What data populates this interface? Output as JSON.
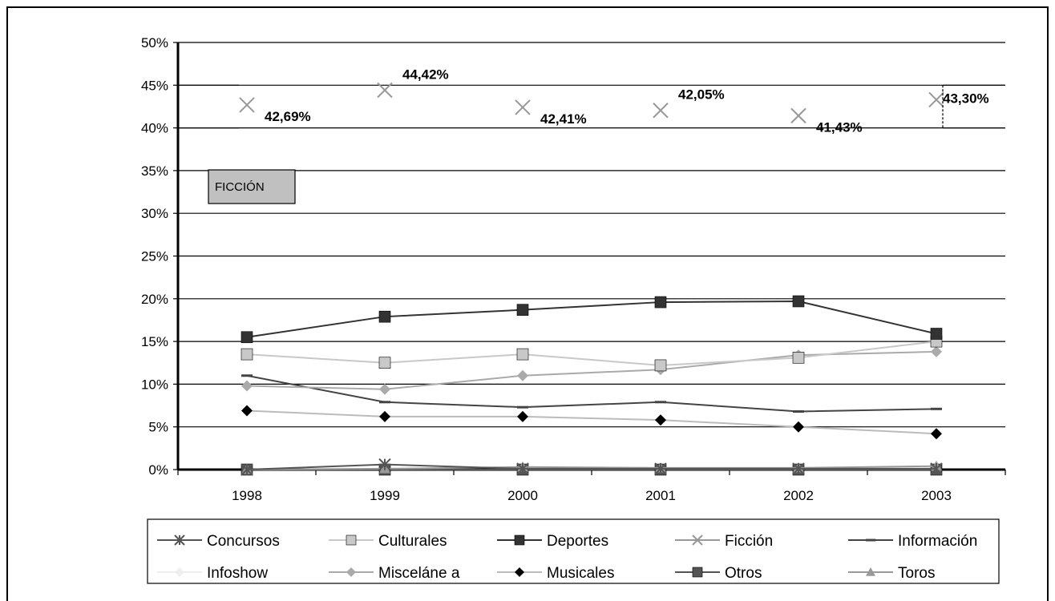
{
  "chart_data": {
    "type": "line",
    "categories": [
      "1998",
      "1999",
      "2000",
      "2001",
      "2002",
      "2003"
    ],
    "ylim": [
      0,
      50
    ],
    "y_tick_labels": [
      "0%",
      "5%",
      "10%",
      "15%",
      "20%",
      "25%",
      "30%",
      "35%",
      "40%",
      "45%",
      "50%"
    ],
    "grid": true,
    "legend_position": "bottom",
    "annotation_box": "FICCIÓN",
    "series": [
      {
        "name": "Concursos",
        "values": [
          0.0,
          0.6,
          0.1,
          0.1,
          0.1,
          0.1
        ],
        "color": "#555555",
        "marker": "star"
      },
      {
        "name": "Culturales",
        "values": [
          13.5,
          12.5,
          13.5,
          12.2,
          13.1,
          15.0
        ],
        "color": "#c8c8c8",
        "marker": "square"
      },
      {
        "name": "Deportes",
        "values": [
          15.5,
          17.9,
          18.7,
          19.6,
          19.7,
          15.9
        ],
        "color": "#333333",
        "marker": "square"
      },
      {
        "name": "Ficción",
        "values": [
          42.69,
          44.42,
          42.41,
          42.05,
          41.43,
          43.3
        ],
        "value_labels": [
          "42,69%",
          "44,42%",
          "42,41%",
          "42,05%",
          "41,43%",
          "43,30%"
        ],
        "color": "#999999",
        "marker": "x"
      },
      {
        "name": "Información",
        "values": [
          11.0,
          7.9,
          7.3,
          7.9,
          6.8,
          7.1
        ],
        "color": "#444444",
        "marker": "dash"
      },
      {
        "name": "Infoshow",
        "values": [
          0.0,
          0.0,
          0.0,
          0.0,
          0.0,
          0.0
        ],
        "color": "#eeeeee",
        "marker": "diamond"
      },
      {
        "name": "Misceláne a",
        "values": [
          9.8,
          9.4,
          11.0,
          11.7,
          13.4,
          13.8
        ],
        "color": "#aaaaaa",
        "marker": "diamond"
      },
      {
        "name": "Musicales",
        "values": [
          6.9,
          6.2,
          6.2,
          5.8,
          5.0,
          4.2
        ],
        "color": "#000000",
        "marker": "diamond",
        "line_color": "#bbbbbb"
      },
      {
        "name": "Otros",
        "values": [
          0.0,
          0.0,
          0.0,
          0.0,
          0.0,
          0.0
        ],
        "color": "#555555",
        "marker": "square"
      },
      {
        "name": "Toros",
        "values": [
          0.0,
          0.1,
          0.3,
          0.2,
          0.2,
          0.4
        ],
        "color": "#999999",
        "marker": "triangle"
      }
    ]
  }
}
